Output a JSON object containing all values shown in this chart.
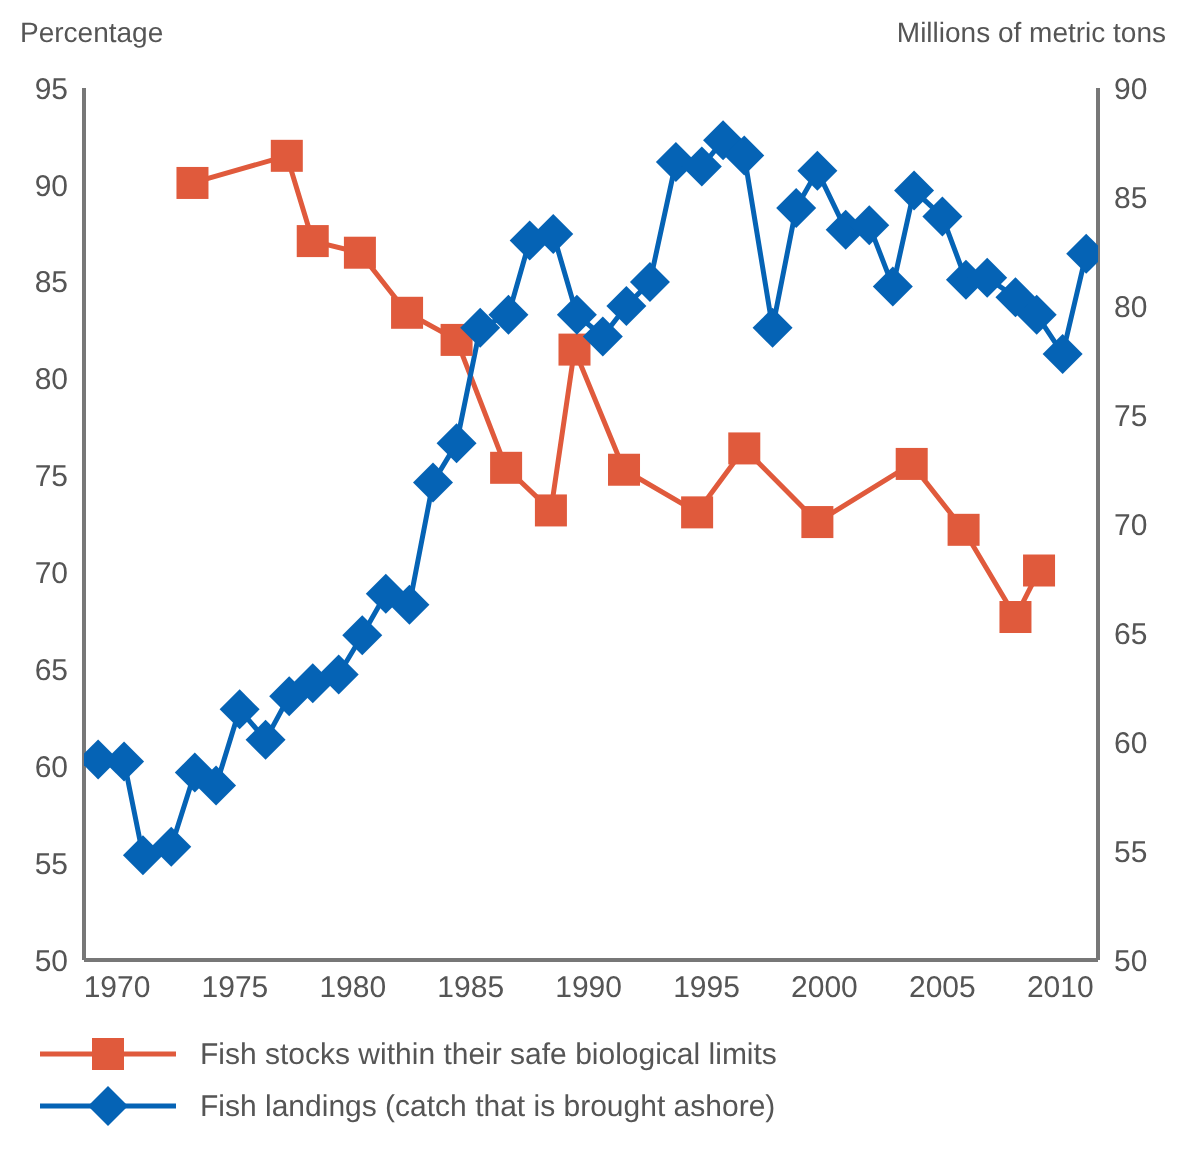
{
  "chart_data": {
    "type": "line",
    "ylabel": "Percentage",
    "y2label": "Millions of metric tons",
    "xlim": [
      1968.6,
      2011.6
    ],
    "xticks": [
      1970,
      1975,
      1980,
      1985,
      1990,
      1995,
      2000,
      2005,
      2010
    ],
    "ylim": [
      50,
      95
    ],
    "yticks": [
      50,
      55,
      60,
      65,
      70,
      75,
      80,
      85,
      90,
      95
    ],
    "y2lim": [
      50,
      90
    ],
    "y2ticks": [
      50,
      55,
      60,
      65,
      70,
      75,
      80,
      85,
      90
    ],
    "grid": false,
    "legend": "bottom",
    "series": [
      {
        "name": "Fish stocks within their safe biological limits",
        "color": "#e05a3c",
        "marker": "square",
        "x": [
          1973.2,
          1977.2,
          1978.3,
          1980.3,
          1982.3,
          1984.4,
          1986.5,
          1988.4,
          1989.4,
          1991.5,
          1994.6,
          1996.6,
          1999.7,
          2003.7,
          2005.9,
          2008.1,
          2009.1
        ],
        "values": [
          90.1,
          91.5,
          87.1,
          86.5,
          83.4,
          82.0,
          75.4,
          73.2,
          81.5,
          75.3,
          73.1,
          76.4,
          72.6,
          75.6,
          72.2,
          67.7,
          70.1
        ]
      },
      {
        "name": "Fish landings (catch that is brought ashore)",
        "color": "#0563b5",
        "marker": "diamond",
        "axis": "y2",
        "x": [
          1969.2,
          1970.3,
          1971.1,
          1972.3,
          1973.3,
          1974.2,
          1975.2,
          1976.3,
          1977.3,
          1978.3,
          1979.4,
          1980.4,
          1981.4,
          1982.4,
          1983.4,
          1984.4,
          1985.4,
          1986.6,
          1987.5,
          1988.5,
          1989.5,
          1990.6,
          1991.6,
          1992.6,
          1993.7,
          1994.8,
          1995.7,
          1996.6,
          1997.8,
          1998.8,
          1999.7,
          2000.9,
          2001.9,
          2002.9,
          2003.8,
          2005.0,
          2006.0,
          2006.9,
          2008.1,
          2009.0,
          2010.1,
          2011.1
        ],
        "values": [
          59.2,
          59.1,
          54.8,
          55.2,
          58.6,
          58.0,
          61.5,
          60.1,
          62.1,
          62.7,
          63.1,
          64.9,
          66.8,
          66.3,
          71.9,
          73.7,
          79.0,
          79.6,
          83.0,
          83.3,
          79.6,
          78.6,
          80.0,
          81.1,
          86.6,
          86.4,
          87.6,
          86.9,
          79.0,
          84.5,
          86.2,
          83.5,
          83.7,
          80.9,
          85.3,
          84.1,
          81.2,
          81.3,
          80.4,
          79.6,
          77.8,
          82.4
        ]
      }
    ]
  }
}
